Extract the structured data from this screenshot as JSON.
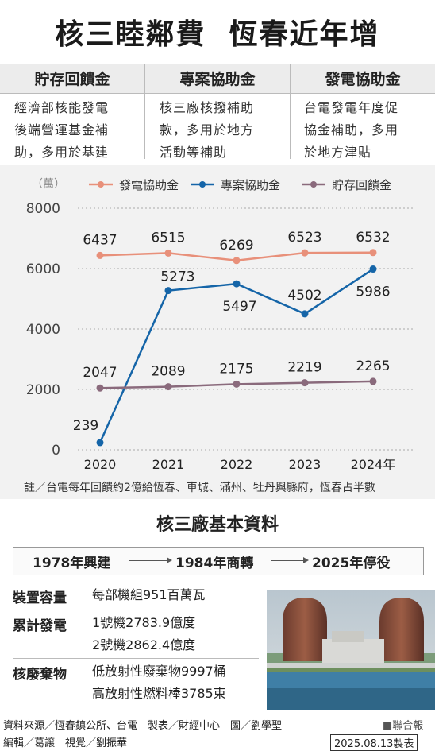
{
  "title": "核三睦鄰費  恆春近年增",
  "columns": [
    {
      "header": "貯存回饋金",
      "lines": [
        "經濟部核能發電",
        "後端營運基金補",
        "助，多用於基建"
      ]
    },
    {
      "header": "專案協助金",
      "lines": [
        "核三廠核撥補助",
        "款，多用於地方",
        "活動等補助"
      ]
    },
    {
      "header": "發電協助金",
      "lines": [
        "台電發電年度促",
        "協金補助，多用",
        "於地方津貼"
      ]
    }
  ],
  "chart_data": {
    "type": "line",
    "unit_label": "（萬）",
    "categories": [
      "2020",
      "2021",
      "2022",
      "2023",
      "2024年"
    ],
    "ylim": [
      0,
      8000
    ],
    "yticks": [
      "0",
      "2000",
      "4000",
      "6000",
      "8000"
    ],
    "series": [
      {
        "name": "發電協助金",
        "color": "#e8907a",
        "values": [
          6437,
          6515,
          6269,
          6523,
          6532
        ]
      },
      {
        "name": "專案協助金",
        "color": "#1565a8",
        "values": [
          239,
          5273,
          5497,
          4502,
          5986
        ]
      },
      {
        "name": "貯存回饋金",
        "color": "#8a6a7c",
        "values": [
          2047,
          2089,
          2175,
          2219,
          2265
        ]
      }
    ],
    "note": "註／台電每年回饋約2億給恆春、車城、滿州、牡丹與縣府，恆春占半數"
  },
  "basic": {
    "title": "核三廠基本資料",
    "timeline": [
      "1978年興建",
      "1984年商轉",
      "2025年停役"
    ],
    "rows": [
      {
        "label": "裝置容量",
        "values": [
          "每部機組951百萬瓦"
        ]
      },
      {
        "label": "累計發電",
        "values": [
          "1號機2783.9億度",
          "2號機2862.4億度"
        ]
      },
      {
        "label": "核廢棄物",
        "values": [
          "低放射性廢棄物9997桶",
          "高放射性燃料棒3785束"
        ]
      }
    ]
  },
  "footer": {
    "source": "資料來源／恆春鎮公所、台電　製表／財經中心　圖／劉學聖",
    "brand": "■聯合報",
    "editor": "編輯／葛譲　視覺／劉振華",
    "date": "2025.08.13製表"
  }
}
